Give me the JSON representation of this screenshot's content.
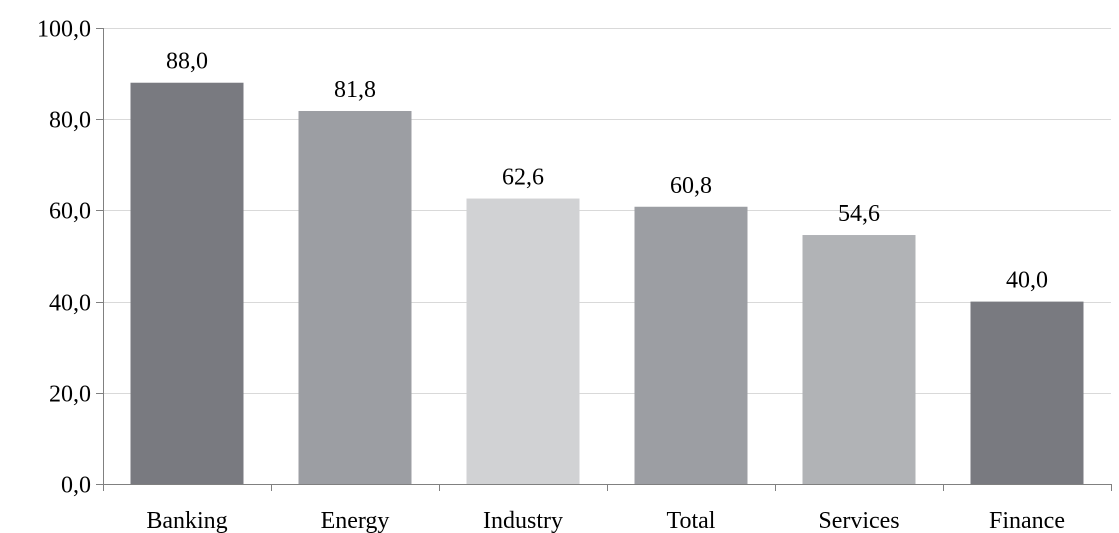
{
  "chart_data": {
    "type": "bar",
    "categories": [
      "Banking",
      "Energy",
      "Industry",
      "Total",
      "Services",
      "Finance"
    ],
    "values": [
      88.0,
      81.8,
      62.6,
      60.8,
      54.6,
      40.0
    ],
    "data_labels": [
      "88,0",
      "81,8",
      "62,6",
      "60,8",
      "54,6",
      "40,0"
    ],
    "bar_colors": [
      "#797a80",
      "#9c9ea3",
      "#d1d2d4",
      "#9c9ea3",
      "#b1b3b6",
      "#797a80"
    ],
    "yticks": [
      0,
      20,
      40,
      60,
      80,
      100
    ],
    "ytick_labels": [
      "0,0",
      "20,0",
      "40,0",
      "60,0",
      "80,0",
      "100,0"
    ],
    "ylim": [
      0,
      100
    ],
    "title": "",
    "xlabel": "",
    "ylabel": "",
    "grid": true,
    "grid_color": "#d9d9d9",
    "axis_color": "#808080",
    "legend": false
  }
}
